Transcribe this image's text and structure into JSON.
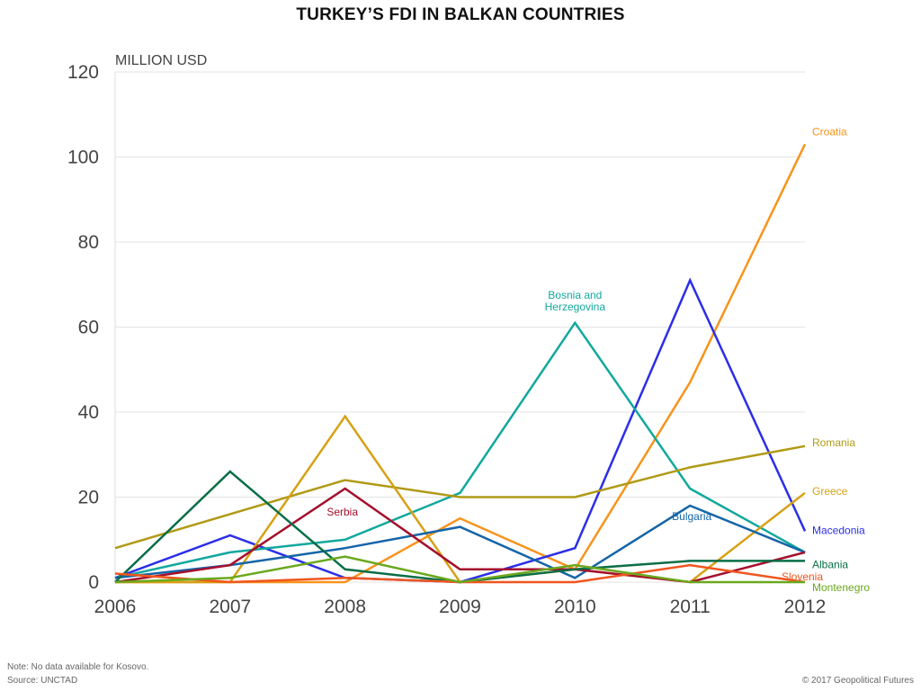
{
  "title": "TURKEY’S FDI IN BALKAN COUNTRIES",
  "footer": {
    "note": "Note: No data available for Kosovo.",
    "source": "Source: UNCTAD",
    "copyright": "© 2017 Geopolitical Futures"
  },
  "chart_data": {
    "type": "line",
    "title": "TURKEY’S FDI IN BALKAN COUNTRIES",
    "ylabel": "MILLION USD",
    "xlabel": "",
    "x": [
      "2006",
      "2007",
      "2008",
      "2009",
      "2010",
      "2011",
      "2012"
    ],
    "yticks": [
      "0",
      "20",
      "40",
      "60",
      "80",
      "100",
      "120"
    ],
    "ylim": [
      0,
      120
    ],
    "grid": true,
    "legend": "direct labels",
    "series": [
      {
        "name": "Croatia",
        "color": "#f7941d",
        "values": [
          0,
          0,
          0,
          15,
          3,
          47,
          103
        ]
      },
      {
        "name": "Macedonia",
        "color": "#2b2ee8",
        "values": [
          1,
          11,
          1,
          0,
          8,
          71,
          12
        ]
      },
      {
        "name": "Bosnia and Herzegovina",
        "color": "#12a89d",
        "values": [
          1,
          7,
          10,
          21,
          61,
          22,
          7
        ]
      },
      {
        "name": "Romania",
        "color": "#b09a16",
        "values": [
          8,
          16,
          24,
          20,
          20,
          27,
          32
        ]
      },
      {
        "name": "Greece",
        "color": "#d6a114",
        "values": [
          0,
          0,
          39,
          0,
          3,
          0,
          21
        ]
      },
      {
        "name": "Bulgaria",
        "color": "#1565a8",
        "values": [
          1,
          4,
          8,
          13,
          1,
          18,
          7
        ]
      },
      {
        "name": "Serbia",
        "color": "#a50f2d",
        "values": [
          0,
          4,
          22,
          3,
          3,
          0,
          7
        ]
      },
      {
        "name": "Albania",
        "color": "#0a6e46",
        "values": [
          0,
          26,
          3,
          0,
          3,
          5,
          5
        ]
      },
      {
        "name": "Slovenia",
        "color": "#f0561e",
        "values": [
          2,
          0,
          1,
          0,
          0,
          4,
          0
        ]
      },
      {
        "name": "Montenegro",
        "color": "#6aa81e",
        "values": [
          0,
          1,
          6,
          0,
          4,
          0,
          0
        ]
      }
    ]
  }
}
